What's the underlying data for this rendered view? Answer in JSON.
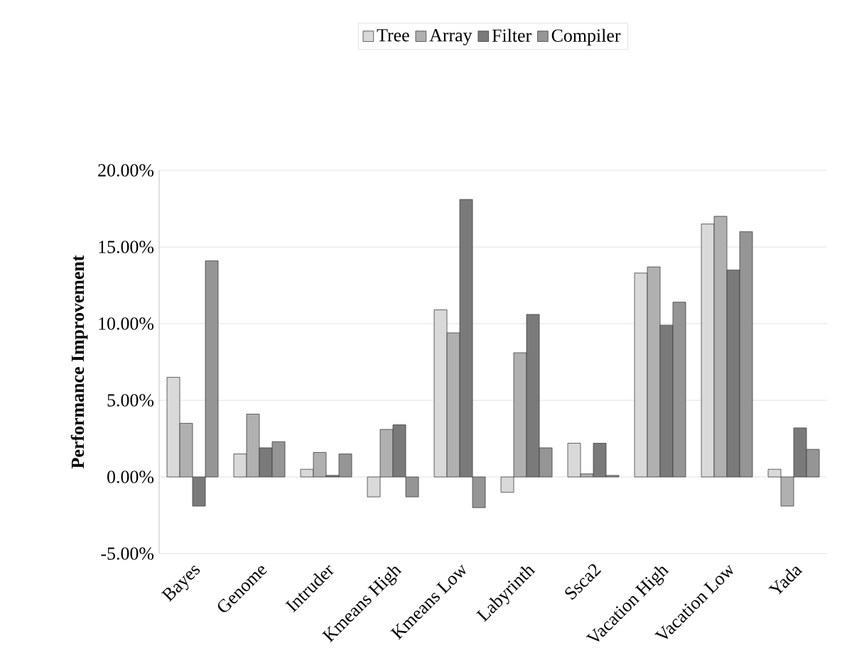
{
  "chart_data": {
    "type": "bar",
    "ylabel": "Performance Improvement",
    "categories": [
      "Bayes",
      "Genome",
      "Intruder",
      "Kmeans High",
      "Kmeans Low",
      "Labyrinth",
      "Ssca2",
      "Vacation High",
      "Vacation Low",
      "Yada"
    ],
    "series": [
      {
        "name": "Tree",
        "color": "#d9d9d9",
        "values": [
          6.5,
          1.5,
          0.5,
          -1.3,
          10.9,
          -1.0,
          2.2,
          13.3,
          16.5,
          0.5
        ]
      },
      {
        "name": "Array",
        "color": "#b0b0b0",
        "values": [
          3.5,
          4.1,
          1.6,
          3.1,
          9.4,
          8.1,
          0.2,
          13.7,
          17.0,
          -1.9
        ]
      },
      {
        "name": "Filter",
        "color": "#7a7a7a",
        "values": [
          -1.9,
          1.9,
          0.1,
          3.4,
          18.1,
          10.6,
          2.2,
          9.9,
          13.5,
          3.2
        ]
      },
      {
        "name": "Compiler",
        "color": "#959595",
        "values": [
          14.1,
          2.3,
          1.5,
          -1.3,
          -2.0,
          1.9,
          0.1,
          11.4,
          16.0,
          1.8
        ]
      }
    ],
    "ylim": [
      -5,
      20
    ],
    "yticks": [
      {
        "value": -5,
        "label": "-5.00%"
      },
      {
        "value": 0,
        "label": "0.00%"
      },
      {
        "value": 5,
        "label": "5.00%"
      },
      {
        "value": 10,
        "label": "10.00%"
      },
      {
        "value": 15,
        "label": "15.00%"
      },
      {
        "value": 20,
        "label": "20.00%"
      }
    ],
    "grid": "y",
    "legend": "top"
  }
}
